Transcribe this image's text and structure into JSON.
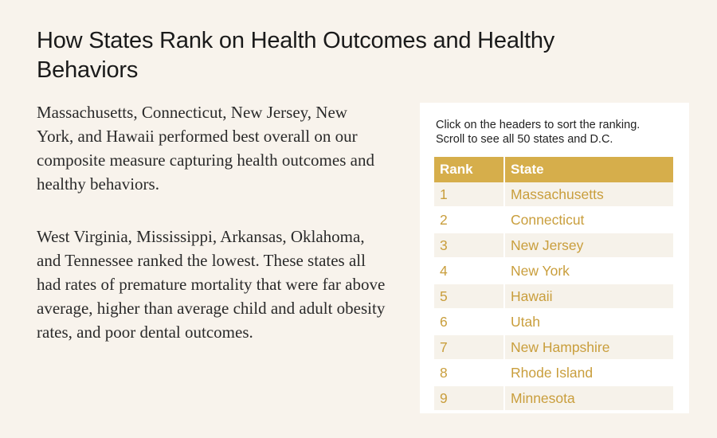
{
  "title": "How States Rank on Health Outcomes and Healthy Behaviors",
  "paragraphs": [
    "Massachusetts, Connecticut, New Jersey, New York, and Hawaii performed best overall on our composite measure capturing health outcomes and healthy behaviors.",
    "West Virginia, Mississippi, Arkansas, Oklahoma, and Tennessee ranked the lowest. These states all had rates of premature mortality that were far above average, higher than average child and adult obesity rates, and poor dental outcomes."
  ],
  "table_panel": {
    "instructions_line1": "Click on the headers to sort the ranking.",
    "instructions_line2": "Scroll to see all 50 states and D.C.",
    "headers": {
      "rank": "Rank",
      "state": "State"
    },
    "rows": [
      {
        "rank": "1",
        "state": "Massachusetts"
      },
      {
        "rank": "2",
        "state": "Connecticut"
      },
      {
        "rank": "3",
        "state": "New Jersey"
      },
      {
        "rank": "4",
        "state": "New York"
      },
      {
        "rank": "5",
        "state": "Hawaii"
      },
      {
        "rank": "6",
        "state": "Utah"
      },
      {
        "rank": "7",
        "state": "New Hampshire"
      },
      {
        "rank": "8",
        "state": "Rhode Island"
      },
      {
        "rank": "9",
        "state": "Minnesota"
      }
    ],
    "colors": {
      "header_bg": "#d6ae4b",
      "cell_text": "#c99e3c",
      "stripe_bg": "#f6f2ea"
    }
  }
}
